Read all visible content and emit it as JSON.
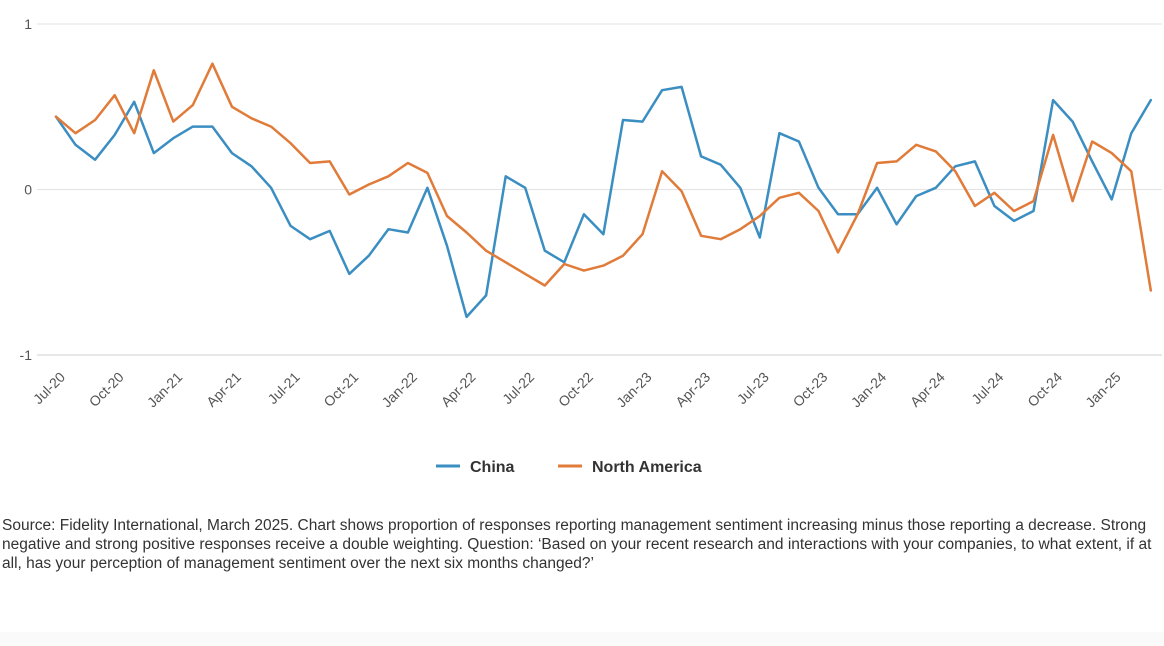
{
  "chart_data": {
    "type": "line",
    "ylim": [
      -1,
      1
    ],
    "yticks": [
      {
        "value": 1,
        "label": "1"
      },
      {
        "value": 0,
        "label": "0"
      },
      {
        "value": -1,
        "label": "-1"
      }
    ],
    "grid": true,
    "legend": "bottom-center",
    "x": [
      "Jul-20",
      "Aug-20",
      "Sep-20",
      "Oct-20",
      "Nov-20",
      "Dec-20",
      "Jan-21",
      "Feb-21",
      "Mar-21",
      "Apr-21",
      "May-21",
      "Jun-21",
      "Jul-21",
      "Aug-21",
      "Sep-21",
      "Oct-21",
      "Nov-21",
      "Dec-21",
      "Jan-22",
      "Feb-22",
      "Mar-22",
      "Apr-22",
      "May-22",
      "Jun-22",
      "Jul-22",
      "Aug-22",
      "Sep-22",
      "Oct-22",
      "Nov-22",
      "Dec-22",
      "Jan-23",
      "Feb-23",
      "Mar-23",
      "Apr-23",
      "May-23",
      "Jun-23",
      "Jul-23",
      "Aug-23",
      "Sep-23",
      "Oct-23",
      "Nov-23",
      "Dec-23",
      "Jan-24",
      "Feb-24",
      "Mar-24",
      "Apr-24",
      "May-24",
      "Jun-24",
      "Jul-24",
      "Aug-24",
      "Sep-24",
      "Oct-24",
      "Nov-24",
      "Dec-24",
      "Jan-25",
      "Feb-25",
      "Mar-25"
    ],
    "xtick_labels": [
      "Jul-20",
      "Oct-20",
      "Jan-21",
      "Apr-21",
      "Jul-21",
      "Oct-21",
      "Jan-22",
      "Apr-22",
      "Jul-22",
      "Oct-22",
      "Jan-23",
      "Apr-23",
      "Jul-23",
      "Oct-23",
      "Jan-24",
      "Apr-24",
      "Jul-24",
      "Oct-24",
      "Jan-25"
    ],
    "series": [
      {
        "name": "China",
        "color": "#3b8ec2",
        "values": [
          0.44,
          0.27,
          0.18,
          0.33,
          0.53,
          0.22,
          0.31,
          0.38,
          0.38,
          0.22,
          0.14,
          0.01,
          -0.22,
          -0.3,
          -0.25,
          -0.51,
          -0.4,
          -0.24,
          -0.26,
          0.01,
          -0.34,
          -0.77,
          -0.64,
          0.08,
          0.01,
          -0.37,
          -0.44,
          -0.15,
          -0.27,
          0.42,
          0.41,
          0.6,
          0.62,
          0.2,
          0.15,
          0.01,
          -0.29,
          0.34,
          0.29,
          0.01,
          -0.15,
          -0.15,
          0.01,
          -0.21,
          -0.04,
          0.01,
          0.14,
          0.17,
          -0.1,
          -0.19,
          -0.13,
          0.54,
          0.41,
          0.17,
          -0.06,
          0.34,
          0.54
        ]
      },
      {
        "name": "North America",
        "color": "#e07b39",
        "values": [
          0.44,
          0.34,
          0.42,
          0.57,
          0.34,
          0.72,
          0.41,
          0.51,
          0.76,
          0.5,
          0.43,
          0.38,
          0.28,
          0.16,
          0.17,
          -0.03,
          0.03,
          0.08,
          0.16,
          0.1,
          -0.16,
          -0.26,
          -0.37,
          -0.44,
          -0.51,
          -0.58,
          -0.45,
          -0.49,
          -0.46,
          -0.4,
          -0.27,
          0.11,
          -0.01,
          -0.28,
          -0.3,
          -0.24,
          -0.16,
          -0.05,
          -0.02,
          -0.13,
          -0.38,
          -0.15,
          0.16,
          0.17,
          0.27,
          0.23,
          0.11,
          -0.1,
          -0.02,
          -0.13,
          -0.07,
          0.33,
          -0.07,
          0.29,
          0.22,
          0.11,
          -0.61
        ]
      }
    ]
  },
  "legend": {
    "items": [
      {
        "label": "China",
        "color": "#3b8ec2"
      },
      {
        "label": "North America",
        "color": "#e07b39"
      }
    ]
  },
  "footnote": "Source: Fidelity International, March 2025. Chart shows proportion of responses reporting management sentiment increasing minus those reporting a decrease. Strong negative and strong positive responses receive a double weighting. Question: ‘Based on your recent research and interactions with your companies, to what extent, if at all, has your perception of management sentiment over the next six months changed?’"
}
